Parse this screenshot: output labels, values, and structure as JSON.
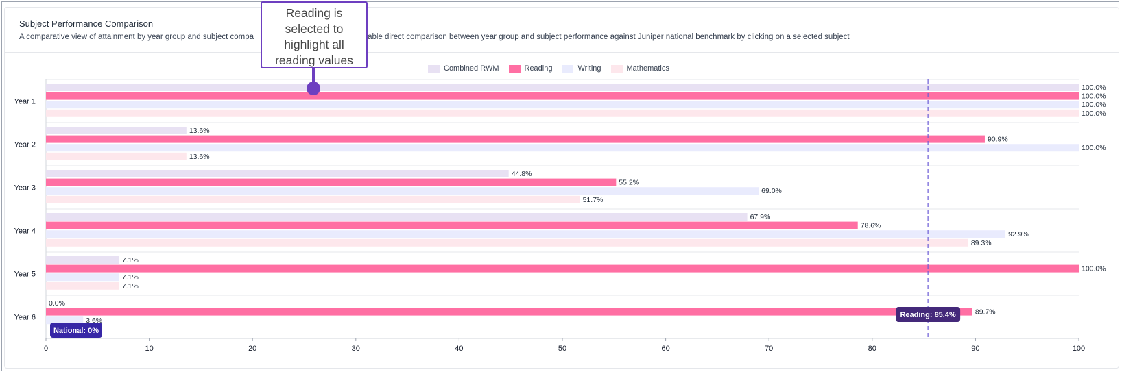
{
  "card": {
    "title": "Subject Performance Comparison",
    "description_left": "A comparative view of attainment by year group and subject compa",
    "description_right": "Enable direct comparison between year group and subject performance against Juniper national benchmark by clicking on a selected subject"
  },
  "callout": {
    "lines": [
      "Reading is",
      "selected to",
      "highlight all",
      "reading values"
    ]
  },
  "colors": {
    "combined": "#e8e1f3",
    "reading": "#ff6fa3",
    "writing": "#e9ebfd",
    "mathematics": "#fde7ec",
    "benchmark_line": "#6b5bd6",
    "reading_tooltip": "#44297a",
    "national_tooltip": "#3727a6"
  },
  "chart_data": {
    "type": "bar",
    "orientation": "horizontal",
    "categories": [
      "Year 1",
      "Year 2",
      "Year 3",
      "Year 4",
      "Year 5",
      "Year 6"
    ],
    "series": [
      {
        "name": "Combined RWM",
        "values": [
          100.0,
          13.6,
          44.8,
          67.9,
          7.1,
          0.0
        ],
        "labels": [
          "100.0%",
          "13.6%",
          "44.8%",
          "67.9%",
          "7.1%",
          "0.0%"
        ]
      },
      {
        "name": "Reading",
        "values": [
          100.0,
          90.9,
          55.2,
          78.6,
          100.0,
          89.7
        ],
        "labels": [
          "100.0%",
          "90.9%",
          "55.2%",
          "78.6%",
          "100.0%",
          "89.7%"
        ]
      },
      {
        "name": "Writing",
        "values": [
          100.0,
          100.0,
          69.0,
          92.9,
          7.1,
          3.6
        ],
        "labels": [
          "100.0%",
          "100.0%",
          "69.0%",
          "92.9%",
          "7.1%",
          "3.6%"
        ]
      },
      {
        "name": "Mathematics",
        "values": [
          100.0,
          13.6,
          51.7,
          89.3,
          7.1,
          null
        ],
        "labels": [
          "100.0%",
          "13.6%",
          "51.7%",
          "89.3%",
          "7.1%",
          ""
        ]
      }
    ],
    "xlim": [
      0,
      100
    ],
    "xticks": [
      0,
      10,
      20,
      30,
      40,
      50,
      60,
      70,
      80,
      90,
      100
    ],
    "benchmark": {
      "subject": "Reading",
      "value": 85.4,
      "label": "Reading:  85.4%"
    },
    "national_tooltip": {
      "label": "National: 0%"
    },
    "legend_position": "top-center"
  }
}
